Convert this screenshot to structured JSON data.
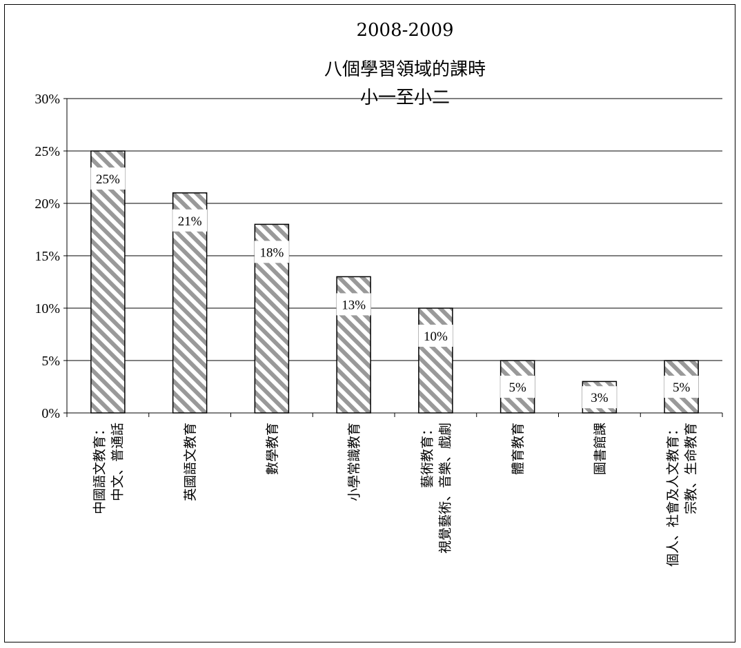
{
  "chart_data": {
    "type": "bar",
    "title_lines": [
      "2008-2009",
      "八個學習領域的課時",
      "小一至小二"
    ],
    "categories": [
      [
        "中國語文教育：",
        "中文、普通話"
      ],
      [
        "英國語文教育"
      ],
      [
        "數學教育"
      ],
      [
        "小學常識教育"
      ],
      [
        "藝術教育：",
        "視覺藝術、音樂、戲劇"
      ],
      [
        "體育教育"
      ],
      [
        "圖書館課"
      ],
      [
        "個人、社會及人文教育：",
        "宗教、生命教育"
      ]
    ],
    "values": [
      25,
      21,
      18,
      13,
      10,
      5,
      3,
      5
    ],
    "data_labels": [
      "25%",
      "21%",
      "18%",
      "13%",
      "10%",
      "5%",
      "3%",
      "5%"
    ],
    "y_ticks": [
      "0%",
      "5%",
      "10%",
      "15%",
      "20%",
      "25%",
      "30%"
    ],
    "ylim": [
      0,
      30
    ],
    "y_step": 5,
    "grid": true,
    "bar_fill": "diagonal hatch",
    "colors": {
      "hatch": "#999999",
      "bar_edge": "#000000",
      "grid": "#000000"
    }
  }
}
